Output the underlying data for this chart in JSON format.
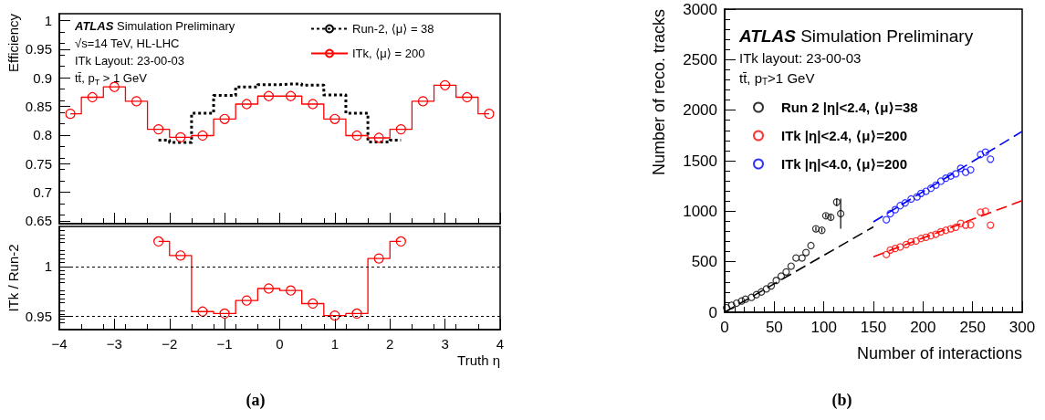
{
  "chart_data": [
    {
      "type": "step",
      "ylabel": "Efficiency",
      "xlim": [
        -4,
        4
      ],
      "xticks": [
        -4,
        -3,
        -2,
        -1,
        0,
        1,
        2,
        3,
        4
      ],
      "ylim": [
        0.645,
        1.012
      ],
      "yticks": [
        0.65,
        0.7,
        0.75,
        0.8,
        0.85,
        0.9,
        0.95,
        1
      ],
      "tick_labels": "y",
      "legend": "top right",
      "annotations": [
        "ATLAS Simulation Preliminary",
        "√s=14 TeV, HL-LHC",
        "ITk Layout: 23-00-03",
        "tt̄, p$_{T}$ > 1 GeV"
      ],
      "series": [
        {
          "name": "Run-2, ⟨μ⟩ = 38",
          "color": "#000000",
          "marker": "none",
          "line_style": "dotted",
          "x": [
            -2.2,
            -1.8,
            -1.4,
            -1.0,
            -0.6,
            -0.2,
            0.2,
            0.6,
            1.0,
            1.4,
            1.8,
            2.2
          ],
          "values": [
            0.791,
            0.787,
            0.838,
            0.869,
            0.884,
            0.888,
            0.889,
            0.887,
            0.87,
            0.838,
            0.788,
            0.791
          ]
        },
        {
          "name": "ITk, ⟨μ⟩ = 200",
          "color": "#ff0000",
          "marker": "circle",
          "line_style": "solid",
          "x": [
            -3.8,
            -3.4,
            -3.0,
            -2.6,
            -2.2,
            -1.8,
            -1.4,
            -1.0,
            -0.6,
            -0.2,
            0.2,
            0.6,
            1.0,
            1.4,
            1.8,
            2.2,
            2.6,
            3.0,
            3.4,
            3.8
          ],
          "values": [
            0.837,
            0.866,
            0.884,
            0.859,
            0.81,
            0.796,
            0.799,
            0.828,
            0.854,
            0.868,
            0.868,
            0.854,
            0.828,
            0.799,
            0.795,
            0.81,
            0.859,
            0.887,
            0.866,
            0.837
          ]
        }
      ]
    },
    {
      "type": "step",
      "title": "(a)",
      "xlabel": "Truth η",
      "ylabel": "ITk / Run-2",
      "xlim": [
        -4,
        4
      ],
      "xticks": [
        -4,
        -3,
        -2,
        -1,
        0,
        1,
        2,
        3,
        4
      ],
      "ylim": [
        0.937,
        1.04
      ],
      "yticks": [
        0.95,
        1
      ],
      "ref_lines": [
        {
          "axis": "y",
          "value": 1,
          "color": "#000000",
          "line_style": "dotted"
        },
        {
          "axis": "y",
          "value": 0.95,
          "color": "#000000",
          "line_style": "dotted"
        }
      ],
      "series": [
        {
          "color": "#ff0000",
          "marker": "circle",
          "line_style": "solid",
          "x": [
            -2.2,
            -1.8,
            -1.4,
            -1.0,
            -0.6,
            -0.2,
            0.2,
            0.6,
            1.0,
            1.4,
            1.8,
            2.2
          ],
          "values": [
            1.025,
            1.011,
            0.955,
            0.953,
            0.966,
            0.978,
            0.976,
            0.963,
            0.951,
            0.953,
            1.008,
            1.025
          ]
        }
      ]
    },
    {
      "type": "scatter",
      "title": "(b)",
      "xlabel": "Number of interactions",
      "ylabel": "Number of reco. tracks",
      "xlim": [
        0,
        300
      ],
      "xticks": [
        0,
        50,
        100,
        150,
        200,
        250,
        300
      ],
      "ylim": [
        0,
        3000
      ],
      "yticks": [
        0,
        500,
        1000,
        1500,
        2000,
        2500,
        3000
      ],
      "legend": "top left",
      "annotations": [
        "ATLAS Simulation Preliminary",
        "ITk layout: 23-00-03",
        "tt̄, p$_{T}$>1 GeV"
      ],
      "series": [
        {
          "name": "Run 2 |η|<2.4, ⟨μ⟩=38",
          "color": "#000000",
          "marker": "circle",
          "x": [
            2,
            7,
            12,
            17,
            21,
            27,
            32,
            37,
            42,
            47,
            52,
            57,
            62,
            67,
            72,
            78,
            82,
            87,
            92,
            98,
            102,
            107,
            113,
            117
          ],
          "values": [
            45,
            69,
            90,
            111,
            129,
            147,
            174,
            201,
            231,
            261,
            315,
            357,
            399,
            456,
            537,
            537,
            591,
            660,
            826,
            811,
            955,
            940,
            1090,
            976
          ],
          "errors": [
            null,
            null,
            null,
            null,
            null,
            null,
            null,
            null,
            null,
            null,
            null,
            null,
            null,
            null,
            null,
            null,
            null,
            null,
            20,
            20,
            20,
            25,
            40,
            150
          ]
        },
        {
          "name": "ITk |η|<2.4, ⟨μ⟩=200",
          "color": "#ff0000",
          "marker": "circle",
          "x": [
            163,
            167,
            172,
            177,
            183,
            188,
            193,
            198,
            203,
            208,
            213,
            218,
            223,
            228,
            233,
            238,
            243,
            248,
            258,
            263,
            268
          ],
          "values": [
            571,
            616,
            631,
            646,
            670,
            697,
            706,
            730,
            742,
            757,
            772,
            796,
            811,
            826,
            841,
            880,
            862,
            865,
            991,
            1000,
            862
          ]
        },
        {
          "name": "ITk |η|<4.0, ⟨μ⟩=200",
          "color": "#0000ff",
          "marker": "circle",
          "x": [
            163,
            167,
            172,
            177,
            182,
            188,
            194,
            198,
            203,
            208,
            213,
            218,
            223,
            228,
            233,
            238,
            243,
            248,
            258,
            263,
            268
          ],
          "values": [
            916,
            976,
            1015,
            1055,
            1082,
            1121,
            1142,
            1176,
            1197,
            1227,
            1258,
            1297,
            1327,
            1348,
            1370,
            1424,
            1385,
            1409,
            1561,
            1585,
            1515
          ]
        },
        {
          "type": "line",
          "color": "#000000",
          "marker": "none",
          "line_style": "dashed",
          "x": [
            0,
            150
          ],
          "values": [
            0,
            845
          ]
        },
        {
          "type": "line",
          "color": "#ff0000",
          "marker": "none",
          "line_style": "dashed",
          "x": [
            150,
            300
          ],
          "values": [
            550,
            1105
          ]
        },
        {
          "type": "line",
          "color": "#0000ff",
          "marker": "none",
          "line_style": "dashed",
          "x": [
            150,
            300
          ],
          "values": [
            895,
            1790
          ]
        }
      ]
    }
  ]
}
